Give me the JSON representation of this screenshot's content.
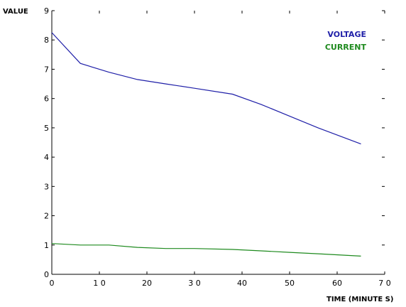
{
  "chart_data": {
    "type": "line",
    "xlabel": "TIME (MINUTE S)",
    "ylabel": "VALUE",
    "xlim": [
      0,
      70
    ],
    "ylim": [
      0,
      9
    ],
    "x_ticks": [
      0,
      10,
      20,
      30,
      40,
      50,
      60,
      70
    ],
    "y_ticks": [
      0,
      1,
      2,
      3,
      4,
      5,
      6,
      7,
      8,
      9
    ],
    "x_tick_labels": [
      "0",
      "1 0",
      "20",
      "3 0",
      "40",
      "50",
      "60",
      "7 0"
    ],
    "y_tick_labels": [
      "0",
      "1",
      "2",
      "3",
      "4",
      "5",
      "6",
      "7",
      "8",
      "9"
    ],
    "grid": false,
    "legend_position": "top-right",
    "series": [
      {
        "name": "VOLTAGE",
        "color": "#1f1fa8",
        "x": [
          0,
          6,
          12,
          18,
          24,
          30,
          38,
          44,
          50,
          56,
          65
        ],
        "y": [
          8.25,
          7.2,
          6.9,
          6.65,
          6.5,
          6.35,
          6.15,
          5.8,
          5.4,
          5.0,
          4.45
        ]
      },
      {
        "name": "CURRENT",
        "color": "#1e8a1e",
        "x": [
          0,
          6,
          12,
          18,
          24,
          30,
          38,
          44,
          50,
          56,
          65
        ],
        "y": [
          1.05,
          1.0,
          1.0,
          0.92,
          0.88,
          0.88,
          0.85,
          0.8,
          0.75,
          0.7,
          0.62
        ]
      }
    ]
  }
}
